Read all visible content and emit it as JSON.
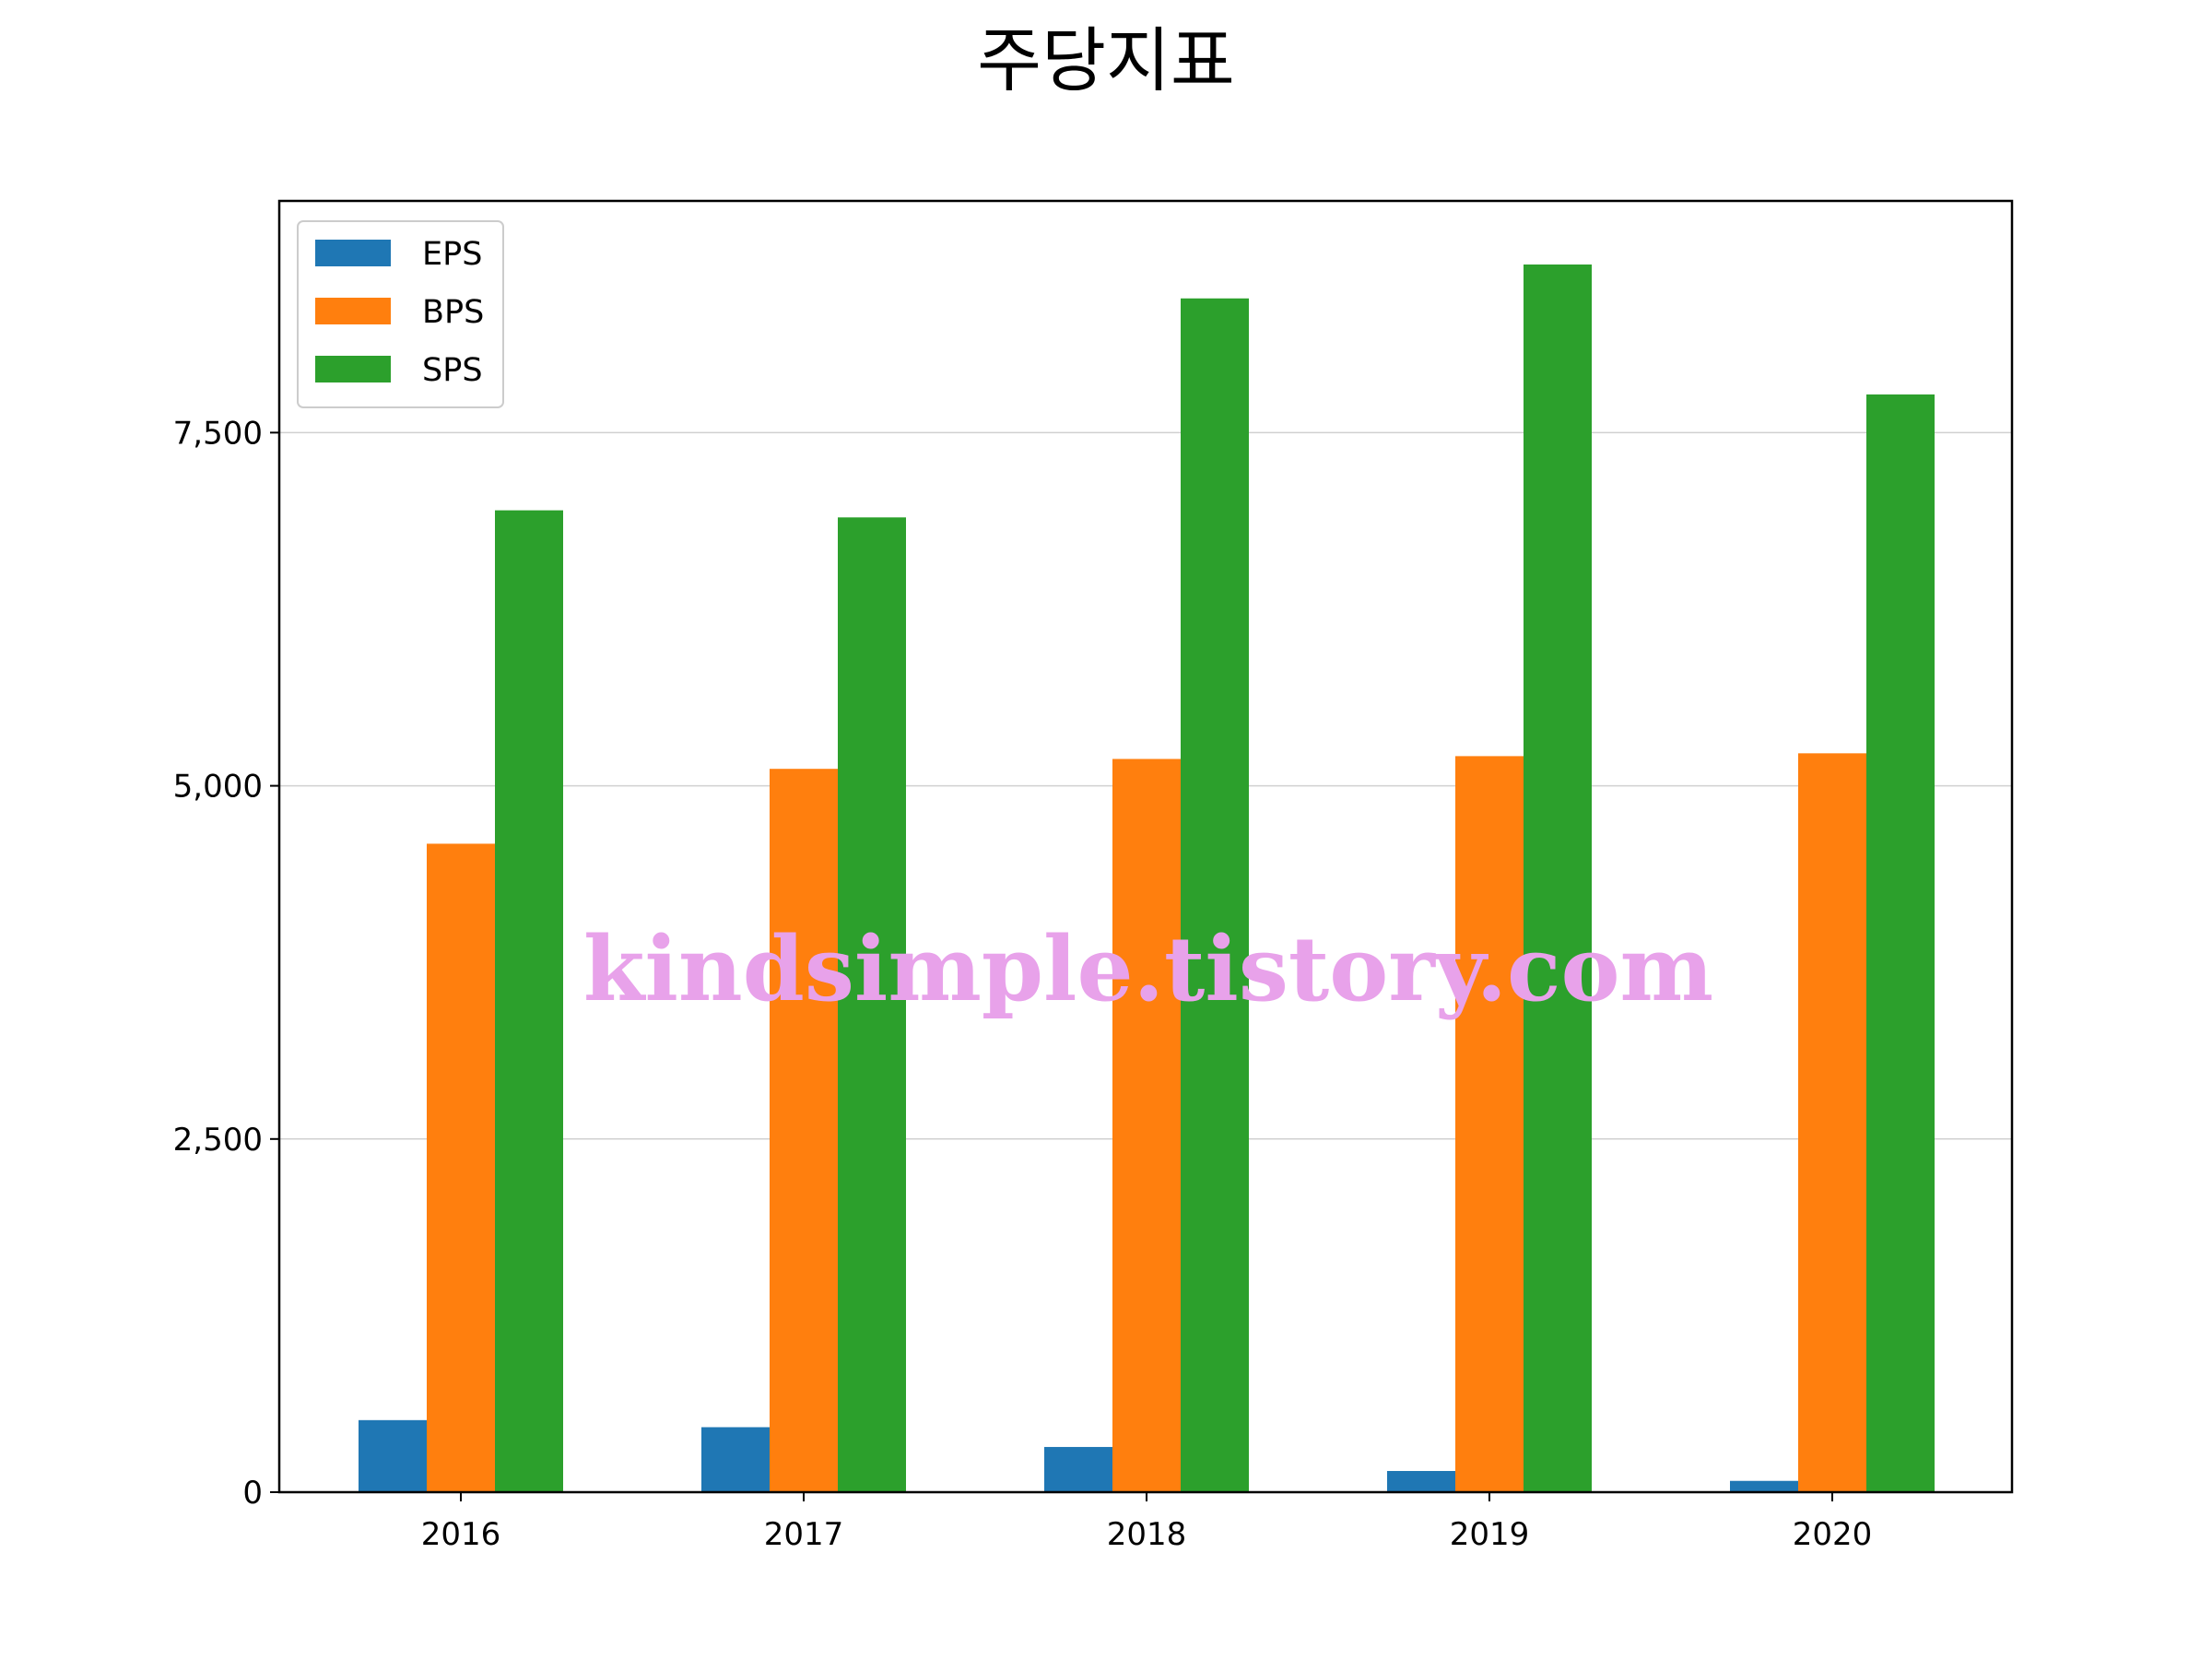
{
  "chart_data": {
    "type": "bar",
    "title": "주당지표",
    "xlabel": "",
    "ylabel": "",
    "categories": [
      "2016",
      "2017",
      "2018",
      "2019",
      "2020"
    ],
    "series": [
      {
        "name": "EPS",
        "color": "#1f77b4",
        "values": [
          510,
          460,
          320,
          150,
          80
        ]
      },
      {
        "name": "BPS",
        "color": "#ff7f0e",
        "values": [
          4590,
          5120,
          5190,
          5210,
          5230
        ]
      },
      {
        "name": "SPS",
        "color": "#2ca02c",
        "values": [
          6950,
          6900,
          8450,
          8690,
          7770
        ]
      }
    ],
    "yticks": [
      0,
      2500,
      5000,
      7500
    ],
    "ytick_labels": [
      "0",
      "2,500",
      "5,000",
      "7,500"
    ],
    "ylim": [
      0,
      9140
    ],
    "grid": "y",
    "legend_position": "upper-left",
    "watermark": "kindsimple.tistory.com"
  }
}
